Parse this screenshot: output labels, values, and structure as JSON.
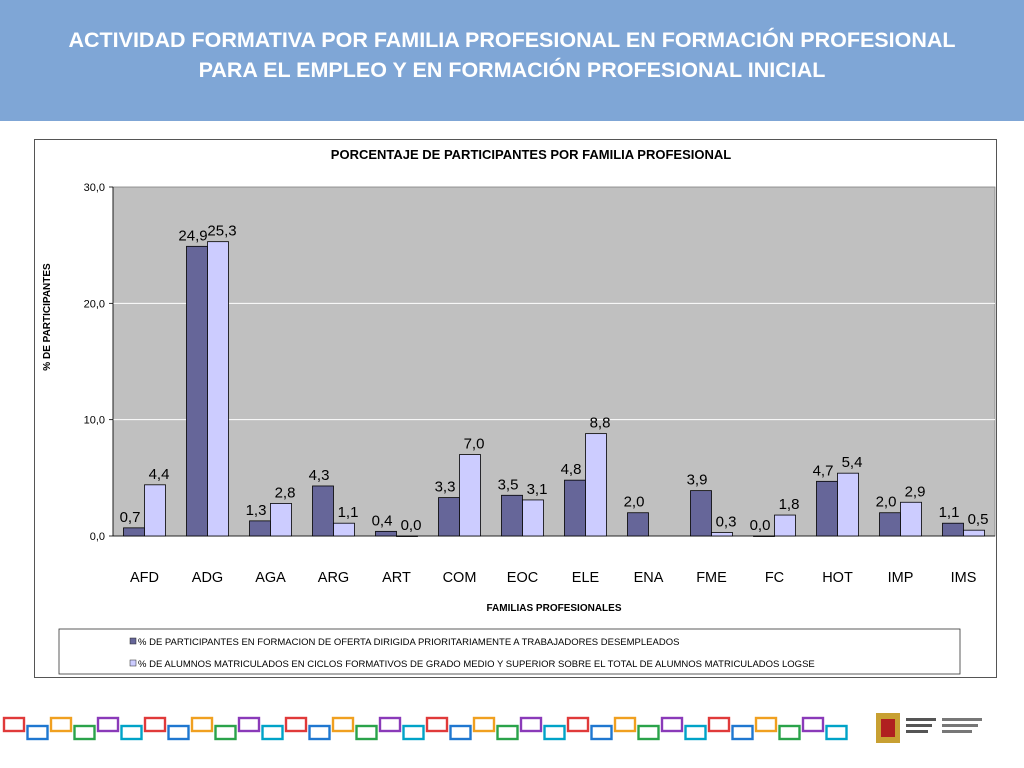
{
  "banner": {
    "title_line1": "ACTIVIDAD FORMATIVA POR FAMILIA PROFESIONAL EN FORMACIÓN PROFESIONAL",
    "title_line2": "PARA EL EMPLEO Y EN FORMACIÓN PROFESIONAL INICIAL"
  },
  "colors": {
    "banner_bg": "#7fa6d6",
    "series1": "#666699",
    "series2": "#ccccff",
    "plot_bg": "#c0c0c0"
  },
  "chart_data": {
    "type": "bar",
    "title": "PORCENTAJE DE PARTICIPANTES POR FAMILIA PROFESIONAL",
    "xlabel": "FAMILIAS PROFESIONALES",
    "ylabel": "% DE PARTICIPANTES",
    "ylim": [
      0,
      30
    ],
    "yticks": [
      "0,0",
      "10,0",
      "20,0",
      "30,0"
    ],
    "grid": true,
    "legend_position": "bottom",
    "categories": [
      "AFD",
      "ADG",
      "AGA",
      "ARG",
      "ART",
      "COM",
      "EOC",
      "ELE",
      "ENA",
      "FME",
      "FC",
      "HOT",
      "IMP",
      "IMS"
    ],
    "series": [
      {
        "name": "% DE PARTICIPANTES EN FORMACION DE OFERTA DIRIGIDA PRIORITARIAMENTE A TRABAJADORES DESEMPLEADOS",
        "values": [
          0.7,
          24.9,
          1.3,
          4.3,
          0.4,
          3.3,
          3.5,
          4.8,
          2.0,
          3.9,
          0.0,
          4.7,
          2.0,
          1.1
        ],
        "labels": [
          "0,7",
          "24,9",
          "1,3",
          "4,3",
          "0,4",
          "3,3",
          "3,5",
          "4,8",
          "2,0",
          "3,9",
          "0,0",
          "4,7",
          "2,0",
          "1,1"
        ]
      },
      {
        "name": "% DE ALUMNOS MATRICULADOS EN CICLOS FORMATIVOS DE GRADO MEDIO Y SUPERIOR SOBRE EL TOTAL DE ALUMNOS MATRICULADOS LOGSE",
        "values": [
          4.4,
          25.3,
          2.8,
          1.1,
          0.0,
          7.0,
          3.1,
          8.8,
          null,
          0.3,
          1.8,
          5.4,
          2.9,
          0.5
        ],
        "labels": [
          "4,4",
          "25,3",
          "2,8",
          "1,1",
          "0,0",
          "7,0",
          "3,1",
          "8,8",
          "",
          "0,3",
          "1,8",
          "5,4",
          "2,9",
          "0,5"
        ]
      }
    ]
  }
}
